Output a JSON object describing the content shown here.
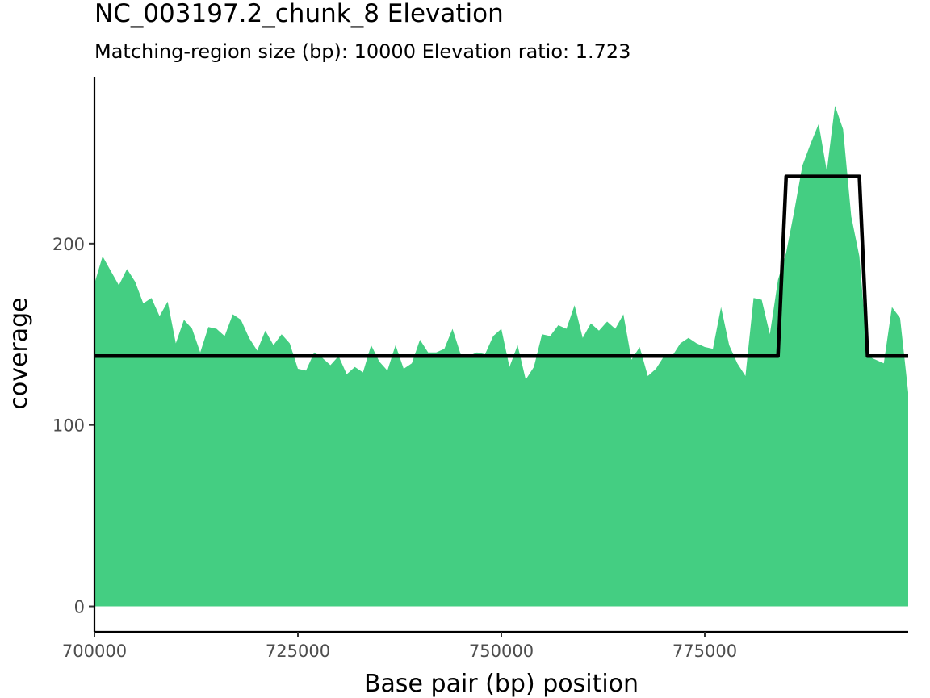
{
  "chart_data": {
    "type": "area",
    "title": "NC_003197.2_chunk_8 Elevation",
    "subtitle": "Matching-region size (bp): 10000 Elevation ratio: 1.723",
    "xlabel": "Base pair (bp) position",
    "ylabel": "coverage",
    "xlim": [
      700000,
      800000
    ],
    "ylim": [
      -14,
      292
    ],
    "x_ticks": [
      700000,
      725000,
      750000,
      775000
    ],
    "y_ticks": [
      0,
      100,
      200
    ],
    "grid": false,
    "legend": "none",
    "colors": {
      "area": "#44CE82",
      "line": "#000000"
    },
    "series": [
      {
        "type": "area",
        "x": [
          700000,
          701000,
          702000,
          703000,
          704000,
          705000,
          706000,
          707000,
          708000,
          709000,
          710000,
          711000,
          712000,
          713000,
          714000,
          715000,
          716000,
          717000,
          718000,
          719000,
          720000,
          721000,
          722000,
          723000,
          724000,
          725000,
          726000,
          727000,
          728000,
          729000,
          730000,
          731000,
          732000,
          733000,
          734000,
          735000,
          736000,
          737000,
          738000,
          739000,
          740000,
          741000,
          742000,
          743000,
          744000,
          745000,
          746000,
          747000,
          748000,
          749000,
          750000,
          751000,
          752000,
          753000,
          754000,
          755000,
          756000,
          757000,
          758000,
          759000,
          760000,
          761000,
          762000,
          763000,
          764000,
          765000,
          766000,
          767000,
          768000,
          769000,
          770000,
          771000,
          772000,
          773000,
          774000,
          775000,
          776000,
          777000,
          778000,
          779000,
          780000,
          781000,
          782000,
          783000,
          784000,
          785000,
          786000,
          787000,
          788000,
          789000,
          790000,
          791000,
          792000,
          793000,
          794000,
          795000,
          796000,
          797000,
          798000,
          799000,
          800000
        ],
        "y": [
          178,
          193,
          185,
          177,
          186,
          179,
          167,
          170,
          160,
          168,
          145,
          158,
          153,
          140,
          154,
          153,
          149,
          161,
          158,
          148,
          141,
          152,
          144,
          150,
          145,
          131,
          130,
          140,
          137,
          133,
          138,
          128,
          132,
          129,
          144,
          135,
          130,
          144,
          131,
          134,
          147,
          140,
          140,
          142,
          153,
          139,
          138,
          140,
          139,
          149,
          153,
          132,
          144,
          125,
          132,
          150,
          149,
          155,
          153,
          166,
          148,
          156,
          152,
          157,
          153,
          161,
          136,
          143,
          127,
          131,
          138,
          138,
          145,
          148,
          145,
          143,
          142,
          165,
          144,
          134,
          127,
          170,
          169,
          150,
          180,
          195,
          218,
          243,
          255,
          266,
          240,
          276,
          263,
          215,
          193,
          138,
          136,
          134,
          165,
          159,
          118
        ]
      },
      {
        "type": "line",
        "x": [
          700000,
          784000,
          785000,
          794000,
          795000,
          800000
        ],
        "y": [
          138,
          138,
          237,
          237,
          138,
          138
        ]
      }
    ]
  }
}
